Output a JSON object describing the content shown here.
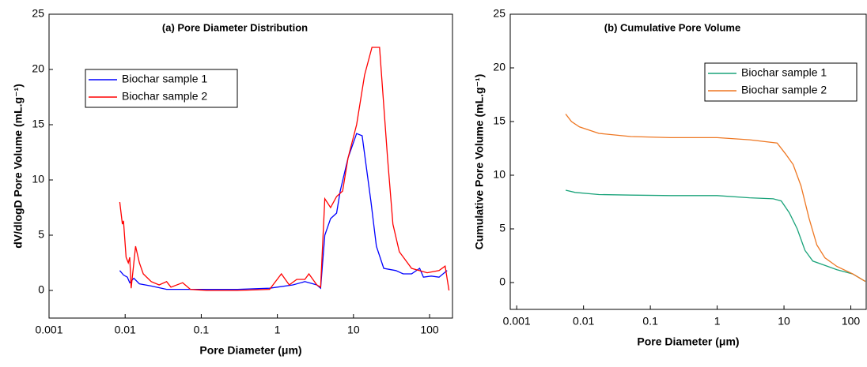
{
  "chart_data": [
    {
      "type": "line",
      "title": "(a) Pore Diameter Distribution",
      "x_label": "Pore Diameter (μm)",
      "y_label": "dV/dlogD Pore Volume (mL.g⁻¹)",
      "xscale": "log",
      "xlim": [
        0.001,
        200
      ],
      "xticks": [
        0.001,
        0.01,
        0.1,
        1,
        10,
        100
      ],
      "ylim": [
        -2.5,
        25
      ],
      "yticks": [
        0,
        5,
        10,
        15,
        20,
        25
      ],
      "legend": "upper left",
      "series": [
        {
          "name": "Biochar sample 1",
          "color": "#0000ff",
          "x": [
            0.0085,
            0.0095,
            0.0107,
            0.0115,
            0.013,
            0.0154,
            0.022,
            0.035,
            0.092,
            0.3,
            0.79,
            1.6,
            2.3,
            3.3,
            3.7,
            4.2,
            5.0,
            6.0,
            6.7,
            8.5,
            11,
            13,
            17,
            20,
            25,
            36,
            45,
            58,
            74,
            83,
            105,
            133,
            170
          ],
          "values": [
            1.8,
            1.4,
            1.2,
            0.7,
            1.1,
            0.6,
            0.4,
            0.1,
            0.1,
            0.1,
            0.2,
            0.5,
            0.8,
            0.5,
            0.2,
            5,
            6.5,
            7,
            9,
            12,
            14.2,
            14,
            8,
            4,
            2,
            1.8,
            1.5,
            1.5,
            2,
            1.2,
            1.3,
            1.2,
            1.8
          ]
        },
        {
          "name": "Biochar sample 2",
          "color": "#ff0000",
          "x": [
            0.0085,
            0.0092,
            0.0095,
            0.0103,
            0.011,
            0.0115,
            0.012,
            0.0137,
            0.0154,
            0.0173,
            0.022,
            0.028,
            0.035,
            0.04,
            0.057,
            0.072,
            0.117,
            0.3,
            0.79,
            1.13,
            1.43,
            1.8,
            2.3,
            2.6,
            3.3,
            3.7,
            4.2,
            5.0,
            6.0,
            7.2,
            8.5,
            11,
            14,
            17.5,
            22,
            28,
            33,
            40,
            58,
            93,
            133,
            160,
            180
          ],
          "values": [
            8,
            6,
            6.3,
            3,
            2.5,
            3,
            0.2,
            4,
            2.5,
            1.5,
            0.8,
            0.5,
            0.8,
            0.3,
            0.7,
            0.1,
            0,
            0,
            0.1,
            1.5,
            0.5,
            1,
            1,
            1.5,
            0.5,
            0.3,
            8.3,
            7.5,
            8.5,
            9,
            12,
            15,
            19.5,
            22,
            22,
            12,
            6,
            3.5,
            2,
            1.6,
            1.8,
            2.2,
            0
          ]
        }
      ]
    },
    {
      "type": "line",
      "title": "(b) Cumulative Pore Volume",
      "x_label": "Pore Diameter (μm)",
      "y_label": "Cumulative Pore Volume (mL.g⁻¹)",
      "xscale": "log",
      "xlim": [
        0.0008,
        170
      ],
      "xticks": [
        0.001,
        0.01,
        0.1,
        1,
        10,
        100
      ],
      "ylim": [
        -2.5,
        25
      ],
      "yticks": [
        0,
        5,
        10,
        15,
        20,
        25
      ],
      "legend": "upper right",
      "series": [
        {
          "name": "Biochar sample 1",
          "color": "#1aa37a",
          "x": [
            0.0054,
            0.0075,
            0.017,
            0.051,
            0.2,
            1,
            3.06,
            6.9,
            9.1,
            12,
            15.8,
            20.6,
            27,
            41,
            62,
            107,
            165
          ],
          "values": [
            8.6,
            8.4,
            8.2,
            8.15,
            8.1,
            8.1,
            7.9,
            7.8,
            7.6,
            6.5,
            5,
            3,
            2,
            1.6,
            1.2,
            0.8,
            0.1
          ]
        },
        {
          "name": "Biochar sample 2",
          "color": "#ee7722",
          "x": [
            0.0054,
            0.0066,
            0.0087,
            0.017,
            0.051,
            0.2,
            1,
            3.06,
            7.9,
            10.5,
            13.7,
            18,
            23.7,
            31,
            41,
            62,
            107,
            165
          ],
          "values": [
            15.7,
            15,
            14.5,
            13.9,
            13.6,
            13.5,
            13.5,
            13.3,
            13.0,
            12,
            11,
            9,
            6,
            3.5,
            2.3,
            1.5,
            0.8,
            0.1
          ]
        }
      ]
    }
  ]
}
